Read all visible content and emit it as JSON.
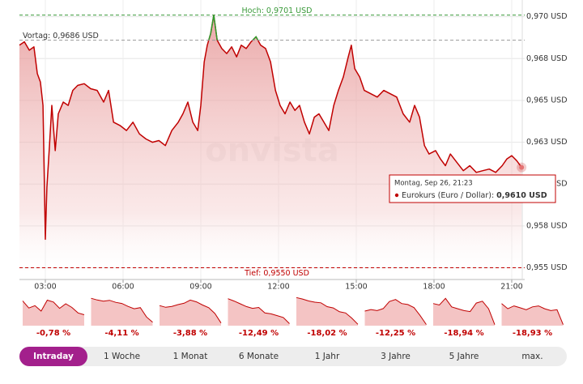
{
  "chart_data": [
    {
      "type": "line",
      "watermark": "onvista",
      "x": [
        2.0,
        2.19,
        2.38,
        2.56,
        2.69,
        2.81,
        2.91,
        3.0,
        3.06,
        3.16,
        3.25,
        3.38,
        3.5,
        3.69,
        3.88,
        4.06,
        4.25,
        4.5,
        4.75,
        5.0,
        5.25,
        5.44,
        5.63,
        5.88,
        6.13,
        6.38,
        6.63,
        6.88,
        7.13,
        7.38,
        7.63,
        7.88,
        8.13,
        8.31,
        8.5,
        8.69,
        8.88,
        9.0,
        9.13,
        9.25,
        9.38,
        9.5,
        9.63,
        9.81,
        10.0,
        10.19,
        10.38,
        10.56,
        10.75,
        10.94,
        11.13,
        11.31,
        11.5,
        11.69,
        11.88,
        12.06,
        12.25,
        12.44,
        12.63,
        12.81,
        13.0,
        13.19,
        13.38,
        13.56,
        13.75,
        13.94,
        14.13,
        14.31,
        14.5,
        14.69,
        14.81,
        14.94,
        15.13,
        15.31,
        15.56,
        15.81,
        16.06,
        16.31,
        16.56,
        16.81,
        17.06,
        17.25,
        17.44,
        17.63,
        17.81,
        18.06,
        18.25,
        18.44,
        18.63,
        18.88,
        19.13,
        19.38,
        19.63,
        19.88,
        20.13,
        20.38,
        20.63,
        20.81,
        21.0,
        21.19,
        21.38
      ],
      "values": [
        0.9683,
        0.9685,
        0.968,
        0.9682,
        0.9666,
        0.9661,
        0.9647,
        0.9567,
        0.9598,
        0.9623,
        0.9647,
        0.962,
        0.9642,
        0.9649,
        0.9647,
        0.9656,
        0.9659,
        0.966,
        0.9657,
        0.9656,
        0.9649,
        0.9656,
        0.9637,
        0.9635,
        0.9632,
        0.9637,
        0.963,
        0.9627,
        0.9625,
        0.9626,
        0.9623,
        0.9632,
        0.9637,
        0.9642,
        0.9649,
        0.9637,
        0.9632,
        0.9647,
        0.9673,
        0.9683,
        0.969,
        0.9701,
        0.9686,
        0.9681,
        0.9678,
        0.9682,
        0.9676,
        0.9683,
        0.9681,
        0.9685,
        0.9688,
        0.9683,
        0.9681,
        0.9673,
        0.9656,
        0.9647,
        0.9642,
        0.9649,
        0.9644,
        0.9647,
        0.9637,
        0.963,
        0.964,
        0.9642,
        0.9637,
        0.9632,
        0.9647,
        0.9656,
        0.9664,
        0.9676,
        0.9683,
        0.9669,
        0.9664,
        0.9656,
        0.9654,
        0.9652,
        0.9656,
        0.9654,
        0.9652,
        0.9642,
        0.9637,
        0.9647,
        0.964,
        0.9623,
        0.9618,
        0.962,
        0.9615,
        0.9611,
        0.9618,
        0.9613,
        0.9608,
        0.9611,
        0.9607,
        0.9608,
        0.9609,
        0.9607,
        0.9611,
        0.9615,
        0.9617,
        0.9614,
        0.961
      ],
      "color": "#c00000",
      "above_color": "#2e9e2e",
      "xlim": [
        2,
        21.5
      ],
      "ylim": [
        0.9543,
        0.971
      ],
      "xticks": [
        {
          "value": 3,
          "label": "03:00"
        },
        {
          "value": 6,
          "label": "06:00"
        },
        {
          "value": 9,
          "label": "09:00"
        },
        {
          "value": 12,
          "label": "12:00"
        },
        {
          "value": 15,
          "label": "15:00"
        },
        {
          "value": 18,
          "label": "18:00"
        },
        {
          "value": 21,
          "label": "21:00"
        }
      ],
      "yticks": [
        {
          "value": 0.955,
          "label": "0,955 USD"
        },
        {
          "value": 0.9575,
          "label": "0,958 USD"
        },
        {
          "value": 0.96,
          "label": "0,960 USD"
        },
        {
          "value": 0.9625,
          "label": "0,963 USD"
        },
        {
          "value": 0.965,
          "label": "0,965 USD"
        },
        {
          "value": 0.9675,
          "label": "0,968 USD"
        },
        {
          "value": 0.97,
          "label": "0,970 USD"
        }
      ],
      "grid": true,
      "reference_lines": [
        {
          "value": 0.9701,
          "label": "Hoch: 0,9701 USD",
          "color": "#3a9a3a"
        },
        {
          "value": 0.9686,
          "label": "Vortag: 0,9686 USD",
          "color": "#999999"
        },
        {
          "value": 0.955,
          "label": "Tief: 0,9550 USD",
          "color": "#c00000"
        }
      ],
      "tooltip": {
        "title": "Montag, Sep 26, 21:23",
        "label": "Eurokurs (Euro / Dollar):",
        "value_label": "0,9610 USD"
      }
    },
    {
      "type": "area",
      "color": "#c00000",
      "ylim": [
        0.955,
        0.971
      ],
      "values": [
        0.9686,
        0.9647,
        0.966,
        0.963,
        0.969,
        0.968,
        0.9645,
        0.967,
        0.965,
        0.962,
        0.961
      ],
      "change_label": "-0,78 %"
    },
    {
      "type": "area",
      "color": "#c00000",
      "ylim": [
        0.955,
        1.005
      ],
      "values": [
        1.002,
        0.999,
        0.997,
        0.9985,
        0.995,
        0.993,
        0.988,
        0.984,
        0.986,
        0.97,
        0.961
      ],
      "change_label": "-4,11 %"
    },
    {
      "type": "area",
      "color": "#c00000",
      "ylim": [
        0.955,
        1.02
      ],
      "values": [
        0.9998,
        0.996,
        0.998,
        1.002,
        1.005,
        1.012,
        1.008,
        1.001,
        0.995,
        0.982,
        0.961
      ],
      "change_label": "-3,88 %"
    },
    {
      "type": "area",
      "color": "#c00000",
      "ylim": [
        0.95,
        1.11
      ],
      "values": [
        1.098,
        1.085,
        1.07,
        1.055,
        1.045,
        1.05,
        1.02,
        1.015,
        1.005,
        0.995,
        0.961
      ],
      "change_label": "-12,49 %"
    },
    {
      "type": "area",
      "color": "#c00000",
      "ylim": [
        0.95,
        1.18
      ],
      "values": [
        1.172,
        1.16,
        1.145,
        1.135,
        1.13,
        1.1,
        1.09,
        1.06,
        1.05,
        1.01,
        0.961
      ],
      "change_label": "-18,02 %"
    },
    {
      "type": "area",
      "color": "#c00000",
      "ylim": [
        0.95,
        1.24
      ],
      "values": [
        1.095,
        1.11,
        1.1,
        1.12,
        1.19,
        1.21,
        1.17,
        1.16,
        1.13,
        1.05,
        0.961
      ],
      "change_label": "-12,25 %"
    },
    {
      "type": "area",
      "color": "#c00000",
      "ylim": [
        0.95,
        1.26
      ],
      "values": [
        1.185,
        1.17,
        1.24,
        1.15,
        1.13,
        1.11,
        1.1,
        1.19,
        1.21,
        1.13,
        0.961
      ],
      "change_label": "-18,94 %"
    },
    {
      "type": "area",
      "color": "#c00000",
      "ylim": [
        0.95,
        1.26
      ],
      "values": [
        1.185,
        1.13,
        1.16,
        1.14,
        1.12,
        1.15,
        1.16,
        1.13,
        1.11,
        1.12,
        0.961
      ],
      "change_label": "-18,93 %"
    }
  ],
  "tabs": [
    "Intraday",
    "1 Woche",
    "1 Monat",
    "6 Monate",
    "1 Jahr",
    "3 Jahre",
    "5 Jahre",
    "max."
  ],
  "active_tab": 0
}
